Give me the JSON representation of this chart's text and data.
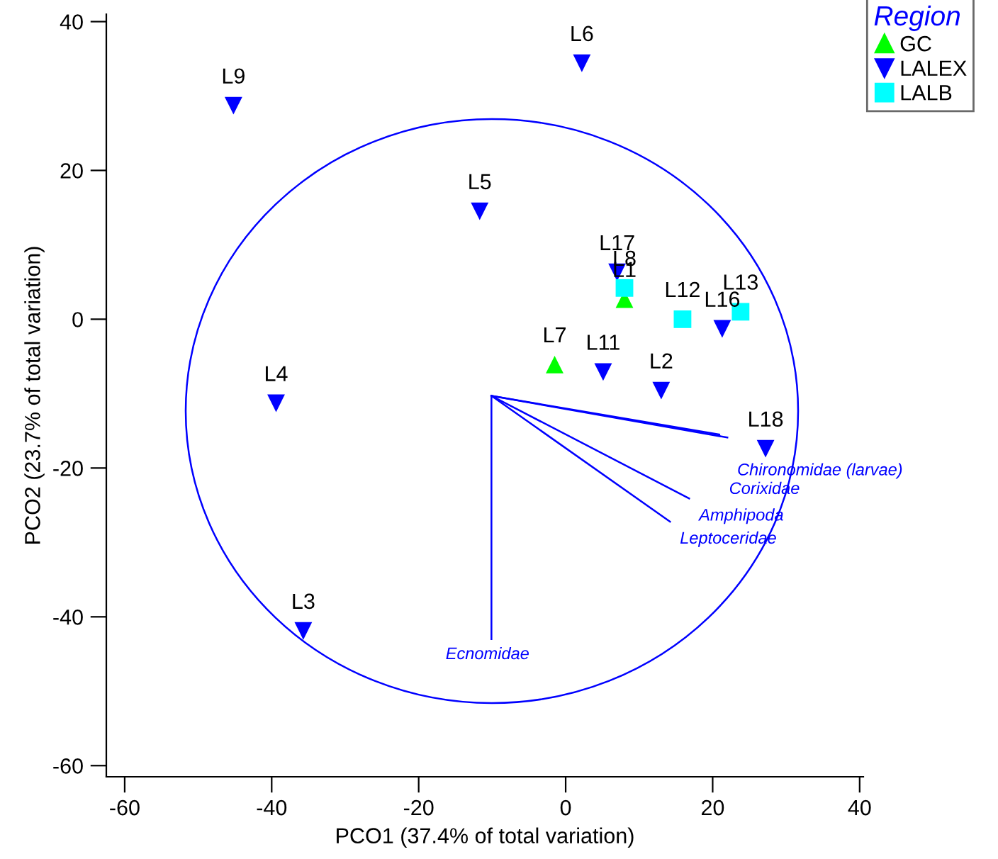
{
  "chart_data": {
    "type": "scatter",
    "xlabel": "PCO1 (37.4% of total variation)",
    "ylabel": "PCO2 (23.7% of total variation)",
    "legend_title": "Region",
    "legend": "top right",
    "grid": false,
    "xlim": [
      -62.5,
      40.5
    ],
    "xticks": [
      -60,
      -40,
      -20,
      0,
      20,
      40
    ],
    "ylim": [
      -61.5,
      41
    ],
    "yticks": [
      -60,
      -40,
      -20,
      0,
      20,
      40
    ],
    "series": [
      {
        "name": "GC",
        "color": "#00ff00",
        "marker": "triangle",
        "x": [
          8.0,
          -1.5
        ],
        "values": [
          2.7,
          -6.1
        ]
      },
      {
        "name": "LALEX",
        "color": "#0000ff",
        "marker": "triangle-down",
        "x": [
          -45.2,
          2.2,
          -11.7,
          7.0,
          21.3,
          5.1,
          13.0,
          -39.4,
          27.2,
          -35.7
        ],
        "values": [
          28.7,
          34.4,
          14.5,
          6.3,
          -1.3,
          -7.1,
          -9.6,
          -11.3,
          -17.4,
          -41.9
        ]
      },
      {
        "name": "LALB",
        "color": "#00ffff",
        "marker": "square",
        "x": [
          8.0,
          15.9,
          23.8
        ],
        "values": [
          4.2,
          0.0,
          1.0
        ]
      },
      {
        "type": "line",
        "color": "#0000ff",
        "x": [
          -10.1,
          -10.1
        ],
        "values": [
          -10.3,
          -43.0
        ]
      },
      {
        "type": "line",
        "color": "#0000ff",
        "x": [
          -10.1,
          14.2
        ],
        "values": [
          -10.3,
          -27.2
        ]
      },
      {
        "type": "line",
        "color": "#0000ff",
        "x": [
          -10.1,
          16.8
        ],
        "values": [
          -10.3,
          -24.1
        ]
      },
      {
        "type": "line",
        "color": "#0000ff",
        "x": [
          -10.1,
          22.0
        ],
        "values": [
          -10.3,
          -15.9
        ]
      },
      {
        "type": "line",
        "color": "#0000ff",
        "x": [
          -10.1,
          20.9
        ],
        "values": [
          -10.3,
          -15.5
        ]
      }
    ],
    "annotations": [
      {
        "text": "L9",
        "x": -45.2,
        "y": 28.7
      },
      {
        "text": "L6",
        "x": 2.2,
        "y": 34.4
      },
      {
        "text": "L5",
        "x": -11.7,
        "y": 14.5
      },
      {
        "text": "L17",
        "x": 7.0,
        "y": 6.3
      },
      {
        "text": "L8",
        "x": 8.0,
        "y": 4.2
      },
      {
        "text": "L1",
        "x": 8.0,
        "y": 2.7
      },
      {
        "text": "L12",
        "x": 15.9,
        "y": 0.0
      },
      {
        "text": "L13",
        "x": 23.8,
        "y": 1.0
      },
      {
        "text": "L16",
        "x": 21.3,
        "y": -1.3
      },
      {
        "text": "L7",
        "x": -1.5,
        "y": -6.1
      },
      {
        "text": "L11",
        "x": 5.1,
        "y": -7.1
      },
      {
        "text": "L2",
        "x": 13.0,
        "y": -9.6
      },
      {
        "text": "L4",
        "x": -39.4,
        "y": -11.3
      },
      {
        "text": "L18",
        "x": 27.2,
        "y": -17.4
      },
      {
        "text": "L3",
        "x": -35.7,
        "y": -41.9
      },
      {
        "text": "Ecnomidae",
        "x": -10.1,
        "y": -43.0
      },
      {
        "text": "Leptoceridae",
        "x": 14.2,
        "y": -27.2
      },
      {
        "text": "Amphipoda",
        "x": 16.8,
        "y": -24.1
      },
      {
        "text": "Chironomidae (larvae)",
        "x": 22.0,
        "y": -15.9
      },
      {
        "text": "Corixidae",
        "x": 20.9,
        "y": -15.5
      }
    ]
  }
}
